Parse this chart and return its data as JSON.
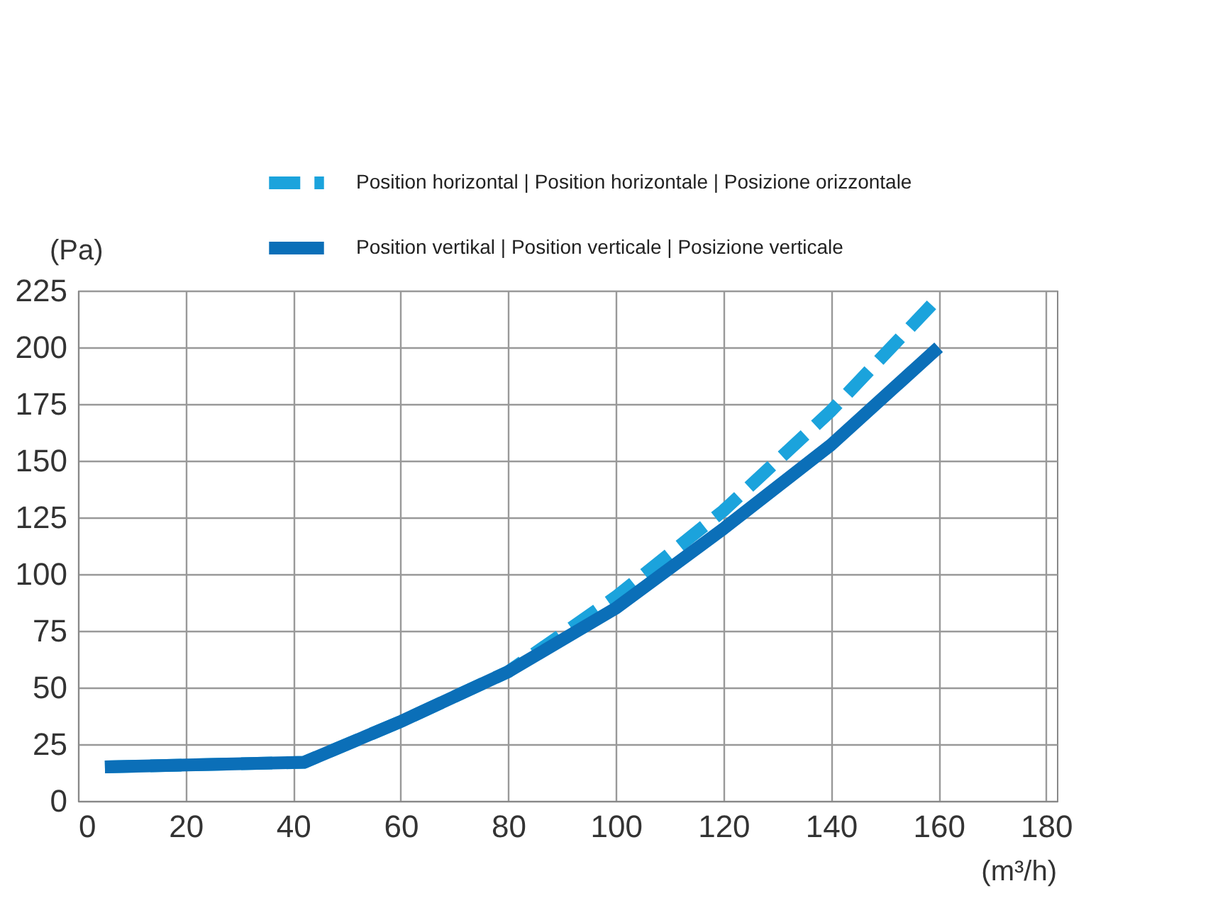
{
  "chart_data": {
    "type": "line",
    "ylabel": "(Pa)",
    "xlabel": "(m³/h)",
    "xlim": [
      0,
      182
    ],
    "xticks": [
      0,
      20,
      40,
      60,
      80,
      100,
      120,
      140,
      160,
      180
    ],
    "ylim": [
      0,
      225
    ],
    "yticks": [
      0,
      25,
      50,
      75,
      100,
      125,
      150,
      175,
      200,
      225
    ],
    "grid": true,
    "legend": "top right",
    "marker": "none",
    "series": [
      {
        "name": "Position horizontal | Position horizontale | Posizione orizzontale",
        "color": "#1ba3dc",
        "line_style": "dashed",
        "x": [
          5,
          42,
          60,
          80,
          100,
          120,
          140,
          160
        ],
        "values": [
          15,
          17,
          35,
          57,
          90,
          128,
          172,
          222
        ]
      },
      {
        "name": "Position vertikal | Position verticale | Posizione verticale",
        "color": "#0b6fb8",
        "line_style": "solid",
        "x": [
          5,
          42,
          60,
          80,
          100,
          120,
          140,
          160
        ],
        "values": [
          15,
          17,
          35,
          57,
          85,
          120,
          157,
          200
        ]
      }
    ]
  }
}
